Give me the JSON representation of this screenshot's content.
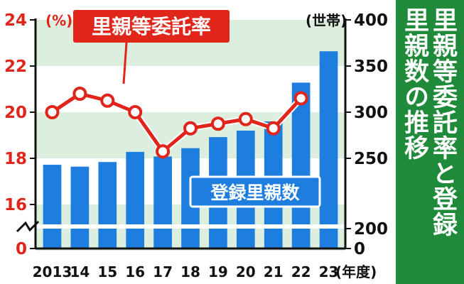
{
  "chart_data": {
    "type": "bar+line",
    "categories": [
      "2013",
      "14",
      "15",
      "16",
      "17",
      "18",
      "19",
      "20",
      "21",
      "22",
      "23"
    ],
    "x_unit": "(年度)",
    "bar_series": {
      "name": "登録里親数",
      "unit": "(世帯)",
      "values": [
        243,
        241,
        246,
        257,
        252,
        261,
        273,
        280,
        290,
        332,
        366
      ],
      "color": "#1e7ee0",
      "axis_range": [
        0,
        400
      ],
      "axis_ticks": [
        0,
        200,
        250,
        300,
        350,
        400
      ]
    },
    "line_series": {
      "name": "里親等委託率",
      "unit": "(%)",
      "values": [
        20.0,
        20.8,
        20.5,
        20.0,
        18.3,
        19.3,
        19.5,
        19.7,
        19.3,
        20.6
      ],
      "color": "#e0251b",
      "axis_range": [
        0,
        24
      ],
      "axis_ticks": [
        0,
        16,
        18,
        20,
        22,
        24
      ]
    },
    "axis_break": true,
    "grid": "horizontal bands",
    "title_lines": [
      "里親等委託率と登録",
      "里親数の推移"
    ]
  },
  "colors": {
    "accent_red": "#e0251b",
    "bar_blue": "#1e7ee0",
    "title_bg": "#1f8a3a",
    "band_green": "#dceedd"
  }
}
